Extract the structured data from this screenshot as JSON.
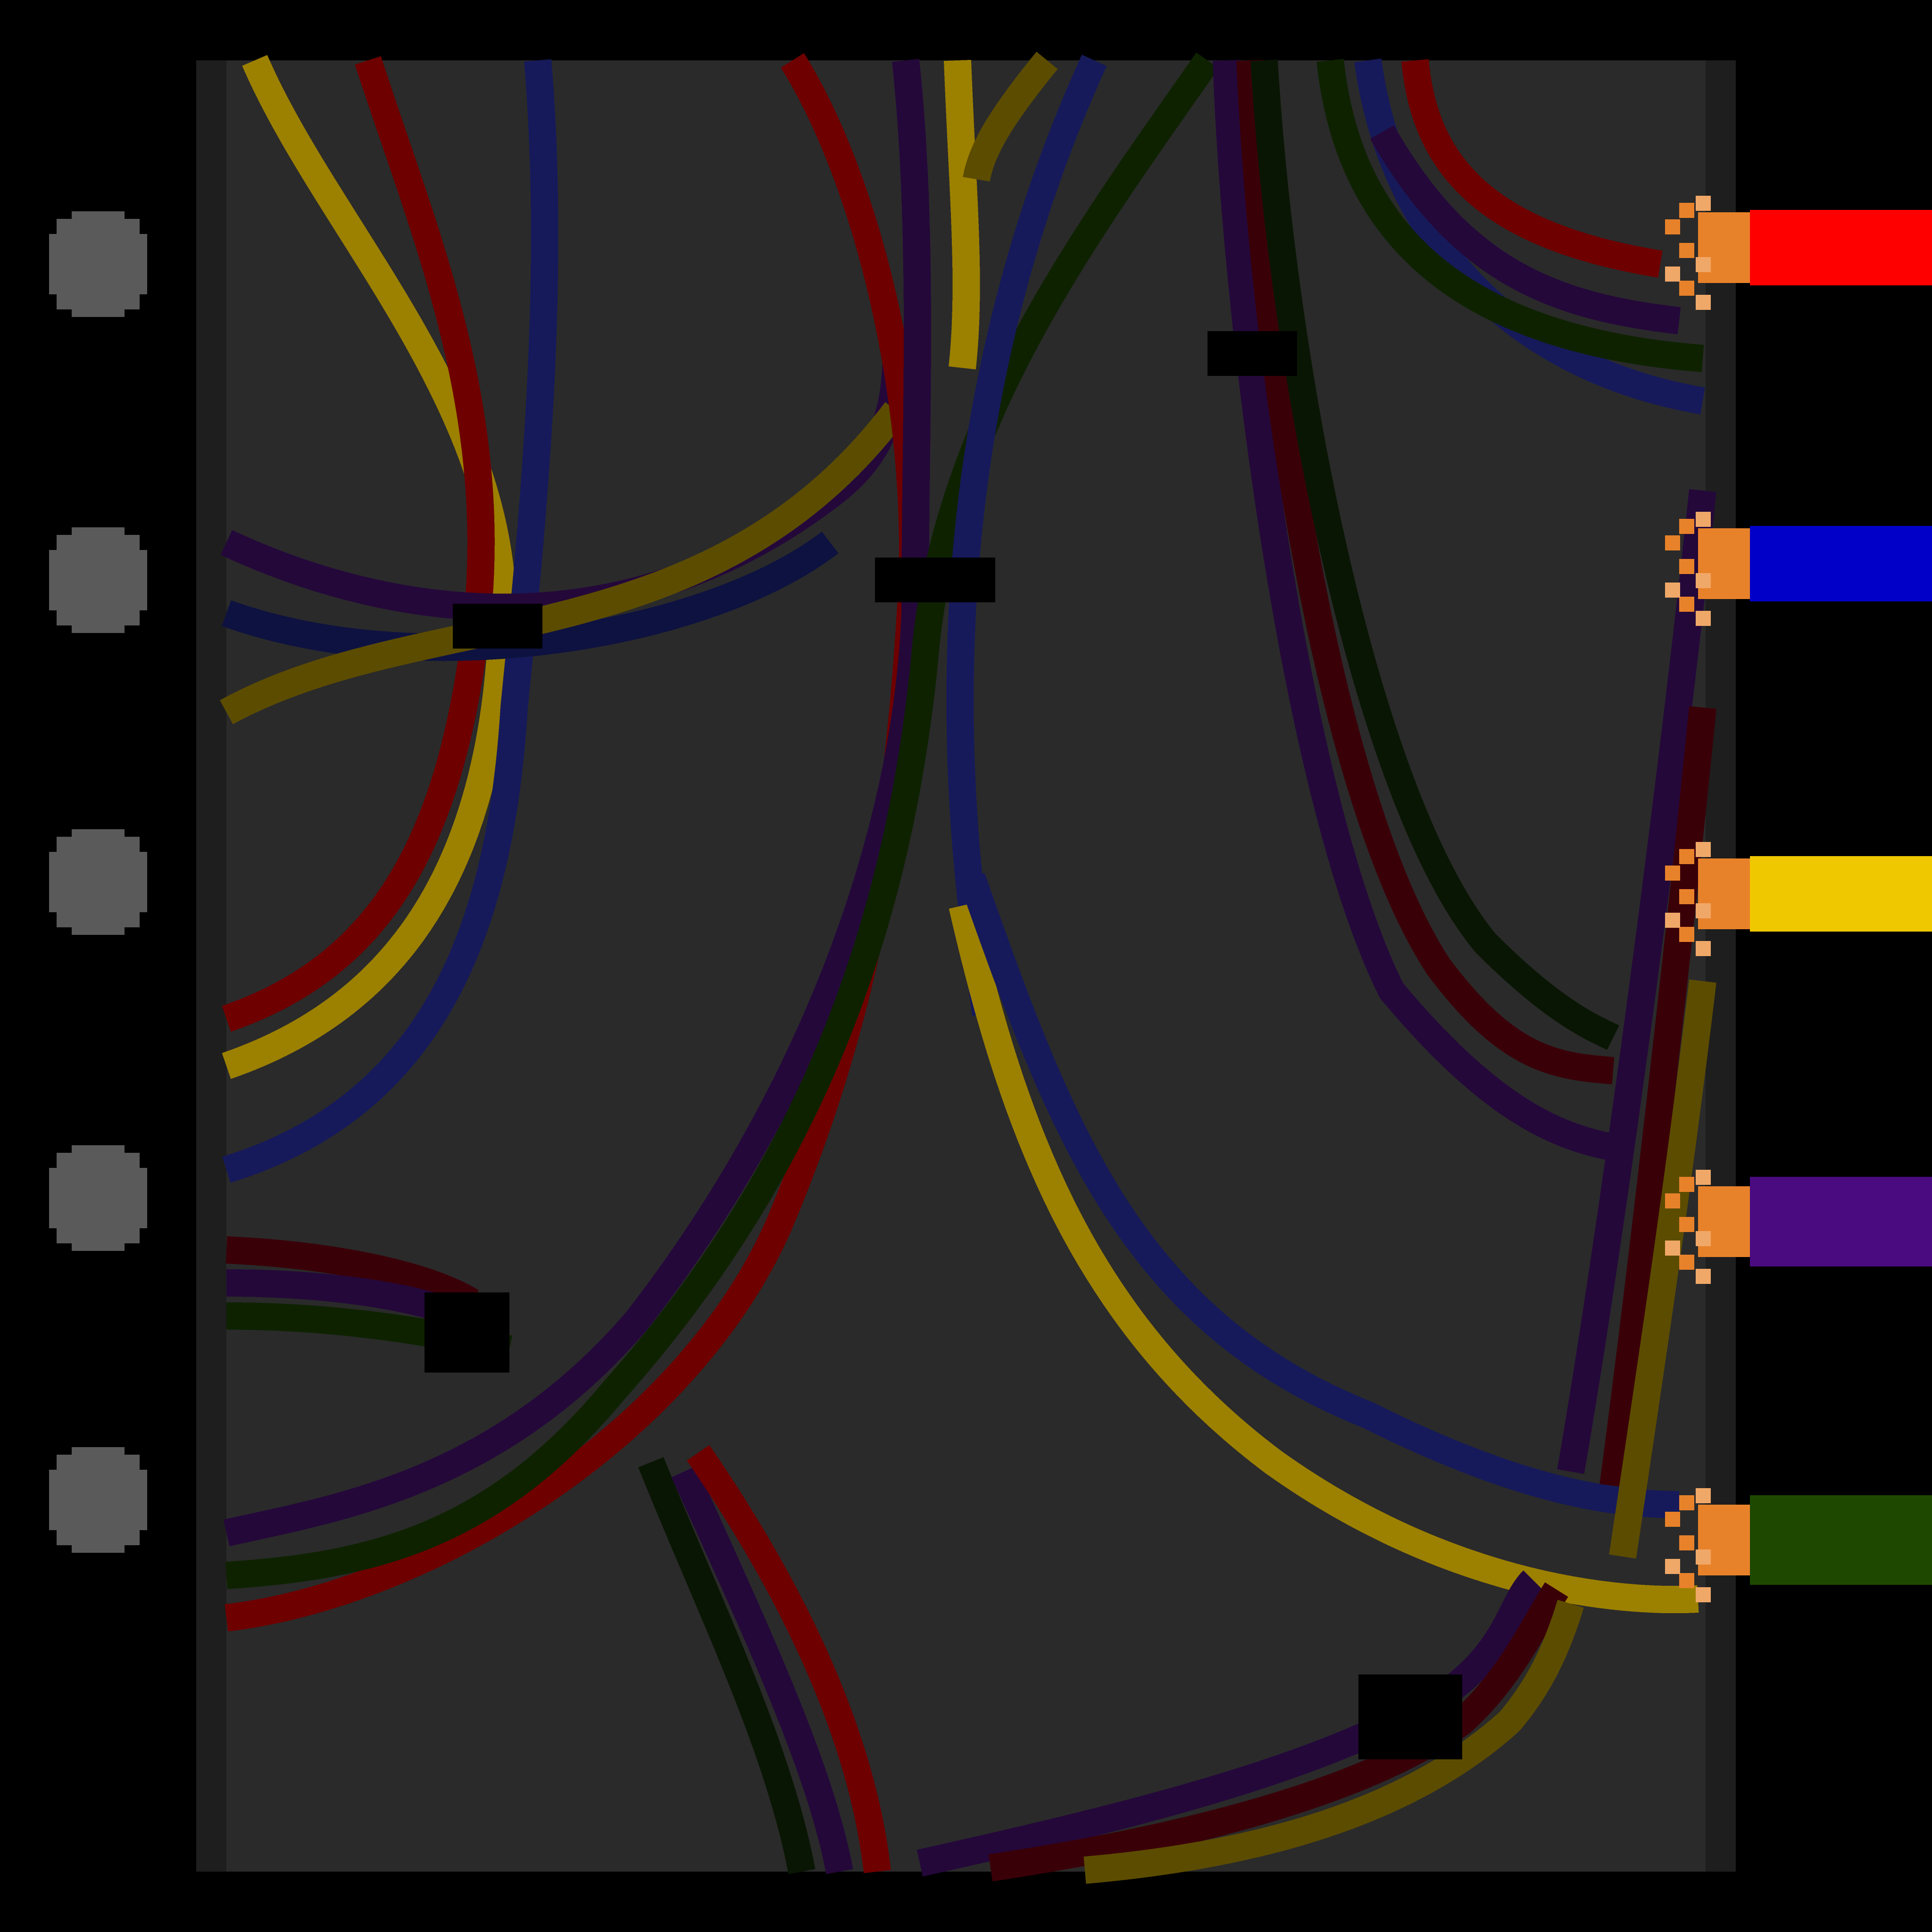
{
  "game": {
    "screen": "wire-puzzle",
    "background_color": "#000000",
    "board_color": "#2a2a2a",
    "board_rail_color": "#1e1e1e",
    "node_color": "#5a5a5a",
    "plug_color": "#e8822a",
    "plug_highlight_color": "#f0a868",
    "left_nodes": [
      {
        "name": "left-node-1"
      },
      {
        "name": "left-node-2"
      },
      {
        "name": "left-node-3"
      },
      {
        "name": "left-node-4"
      },
      {
        "name": "left-node-5"
      }
    ],
    "right_plugs": [
      {
        "name": "plug-red",
        "color": "#ff0000"
      },
      {
        "name": "plug-blue",
        "color": "#0000c8"
      },
      {
        "name": "plug-yellow",
        "color": "#f0c800"
      },
      {
        "name": "plug-purple",
        "color": "#4a0a80"
      },
      {
        "name": "plug-green",
        "color": "#1e4800"
      }
    ],
    "wire_colors": {
      "red": "#6e0000",
      "dark_red": "#3a0008",
      "blue": "#161a5a",
      "dark_blue": "#0e1240",
      "yellow": "#9c8000",
      "dark_yellow": "#5c4c00",
      "purple": "#24083a",
      "green": "#0e2200",
      "dark_green": "#0a1604"
    },
    "blocker_color": "#000000"
  }
}
